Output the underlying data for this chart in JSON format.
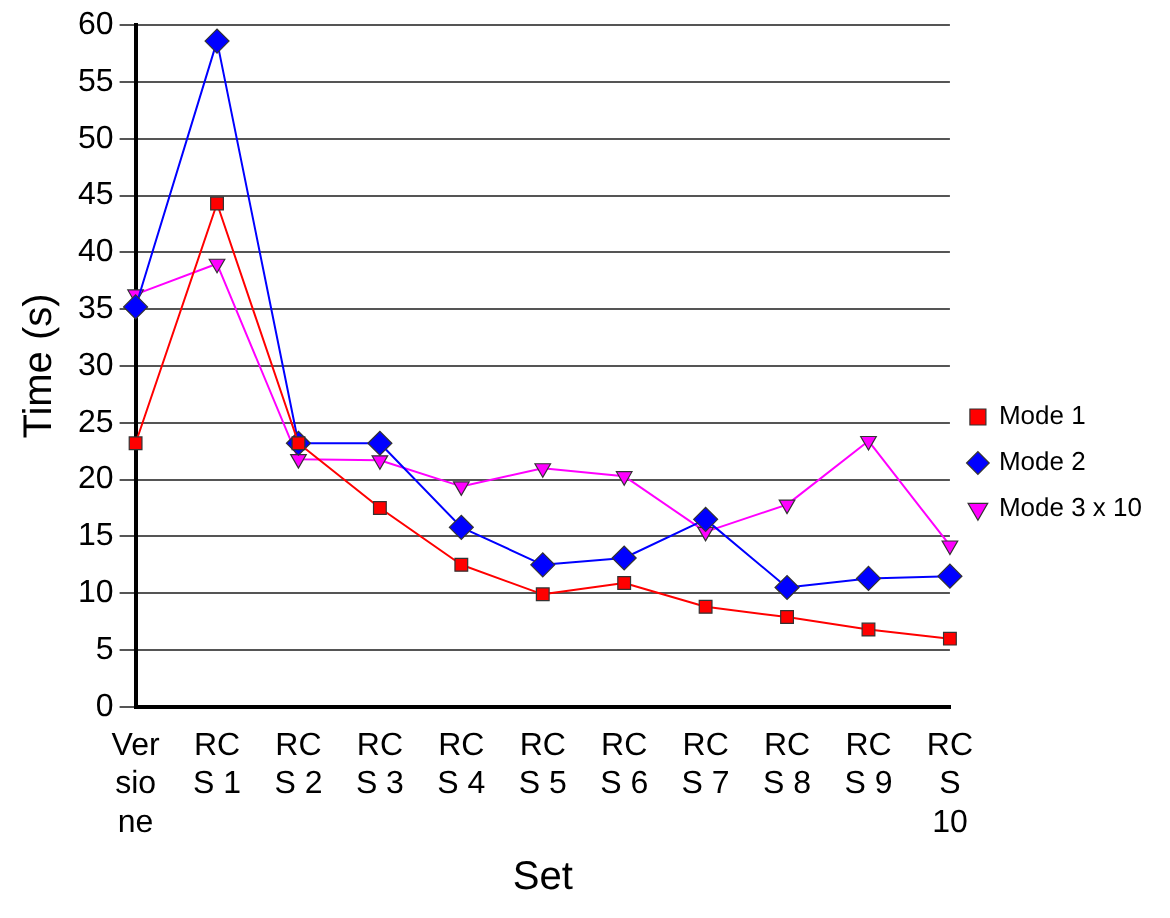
{
  "chart_data": {
    "type": "line",
    "xlabel": "Set",
    "ylabel": "Time (s)",
    "categories": [
      "Versione",
      "RCS 1",
      "RCS 2",
      "RCS 3",
      "RCS 4",
      "RCS 5",
      "RCS 6",
      "RCS 7",
      "RCS 8",
      "RCS 9",
      "RCS 10"
    ],
    "series": [
      {
        "name": "Mode 1",
        "color": "#ff0000",
        "marker": "square",
        "values": [
          23.2,
          44.3,
          23.2,
          17.5,
          12.5,
          9.9,
          10.9,
          8.8,
          7.9,
          6.8,
          6.0
        ]
      },
      {
        "name": "Mode 2",
        "color": "#0000ff",
        "marker": "diamond",
        "values": [
          35.2,
          58.6,
          23.2,
          23.2,
          15.8,
          12.5,
          13.1,
          16.5,
          10.5,
          11.3,
          11.5
        ]
      },
      {
        "name": "Mode 3 x 10",
        "color": "#ff00ff",
        "marker": "triangle",
        "values": [
          36.3,
          39.0,
          21.8,
          21.7,
          19.4,
          21.0,
          20.3,
          15.4,
          17.8,
          23.4,
          14.2
        ]
      }
    ],
    "ylim": [
      0,
      60
    ],
    "yticks": [
      0,
      5,
      10,
      15,
      20,
      25,
      30,
      35,
      40,
      45,
      50,
      55,
      60
    ],
    "grid": "y",
    "legend": "right",
    "line_style": "solid"
  }
}
